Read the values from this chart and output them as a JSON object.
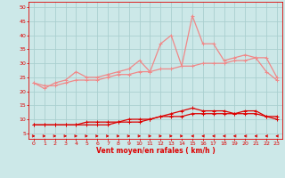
{
  "x": [
    0,
    1,
    2,
    3,
    4,
    5,
    6,
    7,
    8,
    9,
    10,
    11,
    12,
    13,
    14,
    15,
    16,
    17,
    18,
    19,
    20,
    21,
    22,
    23
  ],
  "rafales": [
    23,
    21,
    23,
    24,
    27,
    25,
    25,
    26,
    27,
    28,
    31,
    27,
    37,
    40,
    29,
    47,
    37,
    37,
    31,
    32,
    33,
    32,
    27,
    24
  ],
  "moyen": [
    23,
    22,
    22,
    23,
    24,
    24,
    24,
    25,
    26,
    26,
    27,
    27,
    28,
    28,
    29,
    29,
    30,
    30,
    30,
    31,
    31,
    32,
    32,
    25
  ],
  "line3": [
    8,
    8,
    8,
    8,
    8,
    8,
    8,
    8,
    9,
    9,
    9,
    10,
    11,
    12,
    13,
    14,
    13,
    13,
    13,
    12,
    13,
    13,
    11,
    11
  ],
  "line4": [
    8,
    8,
    8,
    8,
    8,
    9,
    9,
    9,
    9,
    10,
    10,
    10,
    11,
    11,
    11,
    12,
    12,
    12,
    12,
    12,
    12,
    12,
    11,
    10
  ],
  "arrow_dirs": [
    1,
    1,
    1,
    1,
    1,
    1,
    1,
    1,
    1,
    1,
    1,
    1,
    1,
    1,
    1,
    -1,
    -1,
    -1,
    -1,
    -1,
    -1,
    -1,
    -1,
    -1
  ],
  "bg_color": "#cce8e8",
  "grid_color": "#aacfcf",
  "color_light": "#f08888",
  "color_dark": "#dd0000",
  "xlabel": "Vent moyen/en rafales ( km/h )",
  "yticks": [
    5,
    10,
    15,
    20,
    25,
    30,
    35,
    40,
    45,
    50
  ],
  "xticks": [
    0,
    1,
    2,
    3,
    4,
    5,
    6,
    7,
    8,
    9,
    10,
    11,
    12,
    13,
    14,
    15,
    16,
    17,
    18,
    19,
    20,
    21,
    22,
    23
  ],
  "ylim": [
    3,
    52
  ],
  "xlim": [
    -0.5,
    23.5
  ]
}
